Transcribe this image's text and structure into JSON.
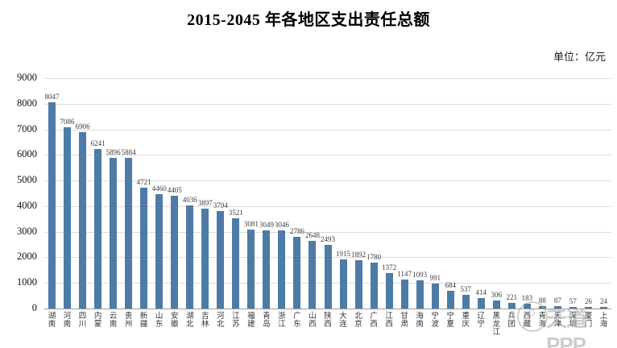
{
  "page": {
    "title": "2015-2045 年各地区支出责任总额",
    "unit_label": "单位：亿元",
    "watermark_text": "天道PPP"
  },
  "chart_data": {
    "type": "bar",
    "title": "2015-2045 年各地区支出责任总额",
    "unit": "亿元",
    "categories": [
      "湖南",
      "河南",
      "四川",
      "内蒙",
      "云南",
      "贵州",
      "新疆",
      "山东",
      "安徽",
      "湖北",
      "吉林",
      "河北",
      "江苏",
      "福建",
      "青岛",
      "浙江",
      "广东",
      "山西",
      "陕西",
      "大连",
      "北京",
      "广西",
      "江西",
      "甘肃",
      "海南",
      "宁波",
      "宁夏",
      "重庆",
      "辽宁",
      "黑龙江",
      "兵团",
      "西藏",
      "青海",
      "天津",
      "深圳",
      "厦门",
      "上海"
    ],
    "values": [
      8047,
      7086,
      6906,
      6241,
      5896,
      5884,
      4721,
      4460,
      4405,
      4036,
      3897,
      3794,
      3521,
      3081,
      3049,
      3046,
      2786,
      2648,
      2493,
      1915,
      1892,
      1780,
      1372,
      1147,
      1093,
      991,
      684,
      537,
      414,
      306,
      221,
      183,
      88,
      87,
      57,
      26,
      24
    ],
    "xlabel": "",
    "ylabel": "",
    "ylim": [
      0,
      9000
    ],
    "y_ticks": [
      0,
      1000,
      2000,
      3000,
      4000,
      5000,
      6000,
      7000,
      8000,
      9000
    ],
    "grid": true,
    "legend_position": "none",
    "bar_color": "#4e7ba6",
    "gridline_color": "#dcdcdc",
    "value_labels_shown": true
  }
}
